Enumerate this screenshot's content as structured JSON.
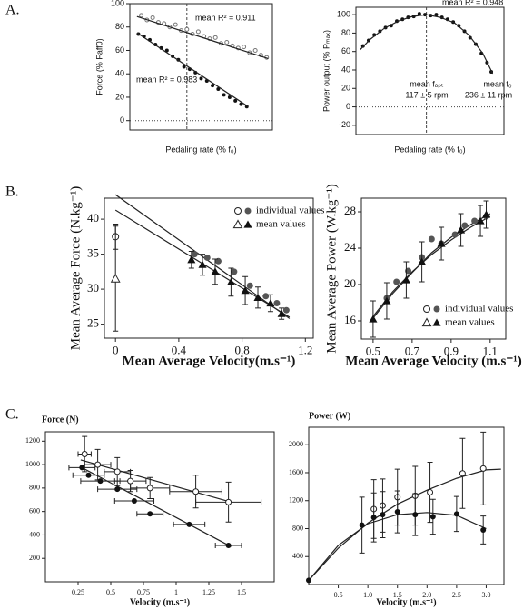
{
  "panel_labels": [
    "A.",
    "B.",
    "C."
  ],
  "chart_data": [
    {
      "type": "scatter",
      "ylabel": "Force (% Faff0)",
      "xlabel": "Pedaling rate (% f₀)",
      "xlim": [
        0,
        100
      ],
      "ylim": [
        -8,
        100
      ],
      "yticks": [
        0,
        20,
        40,
        60,
        80,
        100
      ],
      "vline": 40,
      "hline": 0,
      "series": [
        {
          "color": "#777777",
          "marker": "circle-open",
          "x": [
            8,
            12,
            16,
            20,
            24,
            28,
            32,
            36,
            40,
            44,
            48,
            52,
            56,
            60,
            64,
            68,
            72,
            76,
            80,
            84,
            88,
            92,
            96
          ],
          "values": [
            90,
            86,
            88,
            84,
            83,
            80,
            82,
            77,
            78,
            74,
            76,
            72,
            70,
            71,
            66,
            67,
            64,
            62,
            63,
            58,
            60,
            56,
            54
          ]
        },
        {
          "color": "#111111",
          "marker": "circle",
          "x": [
            6,
            10,
            14,
            18,
            22,
            26,
            30,
            34,
            38,
            42,
            46,
            50,
            54,
            58,
            62,
            66,
            70,
            74,
            78,
            82
          ],
          "values": [
            74,
            72,
            69,
            65,
            62,
            60,
            55,
            52,
            46,
            44,
            41,
            36,
            34,
            30,
            27,
            22,
            20,
            17,
            14,
            12
          ]
        },
        {
          "color": "#222222",
          "marker": "line",
          "x": [
            5,
            97
          ],
          "values": [
            89,
            53
          ]
        },
        {
          "color": "#222222",
          "marker": "line",
          "x": [
            5,
            83
          ],
          "values": [
            75,
            12
          ]
        }
      ],
      "annotations": [
        "mean R² = 0.911",
        "mean R² = 0.983"
      ]
    },
    {
      "type": "scatter",
      "ylabel": "Power output (% Pₘₐₓ)",
      "xlabel": "Pedaling rate (% f₀)",
      "xlim": [
        0,
        105
      ],
      "ylim": [
        -30,
        108
      ],
      "yticks": [
        -20,
        0,
        20,
        40,
        60,
        80,
        100
      ],
      "vline": 50,
      "hline": 0,
      "series": [
        {
          "color": "#111111",
          "marker": "circle",
          "x": [
            5,
            9,
            13,
            17,
            21,
            25,
            29,
            33,
            37,
            41,
            45,
            49,
            53,
            57,
            61,
            65,
            69,
            73,
            77,
            81,
            85,
            89,
            93,
            96
          ],
          "values": [
            66,
            72,
            78,
            82,
            86,
            88,
            93,
            95,
            97,
            98,
            101,
            100,
            99,
            100,
            97,
            95,
            92,
            88,
            82,
            75,
            68,
            58,
            48,
            38
          ]
        },
        {
          "color": "#222222",
          "marker": "line",
          "x": [
            3,
            10,
            20,
            30,
            40,
            50,
            60,
            70,
            80,
            90,
            97
          ],
          "values": [
            62,
            73,
            85,
            93,
            98,
            100,
            97,
            91,
            78,
            58,
            36
          ]
        }
      ],
      "annotations": [
        "mean R² = 0.948",
        "mean fₒₚₜ",
        "117 ± 5 rpm",
        "mean f₀",
        "236 ± 11 rpm"
      ]
    },
    {
      "type": "scatter",
      "ylabel": "Mean Average Force (N.kg⁻¹)",
      "xlabel": "Mean Average Velocity(m.s⁻¹)",
      "xlim": [
        -0.07,
        1.25
      ],
      "ylim": [
        23,
        43
      ],
      "xticks": [
        0,
        0.4,
        0.8,
        1.2
      ],
      "yticks": [
        25,
        30,
        35,
        40
      ],
      "series": [
        {
          "color": "#222222",
          "marker": "line",
          "x": [
            0,
            1.1
          ],
          "values": [
            43.5,
            25.8
          ]
        },
        {
          "color": "#222222",
          "marker": "line",
          "x": [
            0,
            1.1
          ],
          "values": [
            41.3,
            26
          ]
        },
        {
          "color": "#222222",
          "marker": "circle-open",
          "x": [
            0
          ],
          "values": [
            37.5
          ],
          "yerr": [
            1.8
          ]
        },
        {
          "color": "#222222",
          "marker": "triangle-open",
          "x": [
            0
          ],
          "values": [
            31.5
          ],
          "yerr": [
            7.5
          ]
        },
        {
          "name": "individual values",
          "color": "#555555",
          "marker": "circle",
          "x": [
            0.5,
            0.58,
            0.65,
            0.75,
            0.85,
            0.95,
            1.02,
            1.08
          ],
          "values": [
            35,
            34.5,
            34,
            32.5,
            30.5,
            29,
            28,
            27
          ]
        },
        {
          "name": "mean values",
          "color": "#111111",
          "marker": "triangle",
          "x": [
            0.48,
            0.55,
            0.63,
            0.73,
            0.82,
            0.9,
            0.98,
            1.05
          ],
          "values": [
            34.2,
            33.5,
            32.5,
            31,
            29.8,
            28.8,
            28,
            26.5
          ],
          "yerr": [
            1.2,
            1.5,
            1.8,
            2,
            2,
            1.5,
            1.2,
            0.8
          ]
        }
      ]
    },
    {
      "type": "scatter",
      "ylabel": "Mean Average Power (W.kg⁻¹)",
      "xlabel": "Mean Average Velocity (m.s⁻¹)",
      "xlim": [
        0.44,
        1.18
      ],
      "ylim": [
        14,
        29.5
      ],
      "xticks": [
        0.5,
        0.7,
        0.9,
        1.1
      ],
      "yticks": [
        16,
        20,
        24,
        28
      ],
      "series": [
        {
          "color": "#222222",
          "marker": "line",
          "x": [
            0.5,
            0.6,
            0.7,
            0.8,
            0.9,
            1.0,
            1.1
          ],
          "values": [
            16.5,
            19.2,
            21.4,
            23.3,
            24.9,
            26.3,
            27.5
          ]
        },
        {
          "color": "#222222",
          "marker": "line",
          "x": [
            0.5,
            0.6,
            0.7,
            0.8,
            0.9,
            1.0,
            1.1
          ],
          "values": [
            16.3,
            19.0,
            21.3,
            23.5,
            25.2,
            26.6,
            27.8
          ]
        },
        {
          "name": "individual values",
          "color": "#555555",
          "marker": "circle",
          "x": [
            0.57,
            0.62,
            0.68,
            0.75,
            0.8,
            0.85,
            0.92,
            0.97,
            1.02,
            1.08
          ],
          "values": [
            18.5,
            20.3,
            21.5,
            23,
            25,
            24.5,
            25.5,
            26.5,
            27,
            27.5
          ]
        },
        {
          "name": "mean values",
          "color": "#111111",
          "marker": "triangle",
          "x": [
            0.5,
            0.57,
            0.67,
            0.75,
            0.85,
            0.95,
            1.05,
            1.08
          ],
          "values": [
            16.2,
            18.2,
            20.5,
            22.5,
            24.5,
            26,
            27,
            27.7
          ],
          "yerr": [
            2,
            2,
            2,
            2.2,
            1.8,
            1.8,
            1.7,
            1.5
          ]
        }
      ]
    },
    {
      "type": "scatter",
      "ylabel": "Force (N)",
      "xlabel": "Velocity (m.s⁻¹)",
      "xlim": [
        0,
        1.75
      ],
      "ylim": [
        0,
        1280
      ],
      "xticks": [
        0.25,
        0.5,
        0.75,
        1,
        1.25,
        1.5
      ],
      "yticks": [
        200,
        400,
        600,
        800,
        1000,
        1200
      ],
      "series": [
        {
          "color": "#222222",
          "marker": "line",
          "x": [
            0.27,
            1.42
          ],
          "values": [
            1040,
            680
          ]
        },
        {
          "color": "#222222",
          "marker": "line",
          "x": [
            0.27,
            1.42
          ],
          "values": [
            980,
            300
          ]
        },
        {
          "color": "#222222",
          "marker": "circle-open",
          "x": [
            0.3,
            0.4,
            0.55,
            0.65,
            0.8,
            1.15,
            1.4
          ],
          "values": [
            1090,
            1000,
            940,
            860,
            800,
            770,
            680
          ],
          "yerr": [
            150,
            130,
            120,
            90,
            90,
            140,
            170
          ],
          "xerr": [
            0.05,
            0.1,
            0.1,
            0.12,
            0.15,
            0.2,
            0.25
          ]
        },
        {
          "color": "#111111",
          "marker": "circle",
          "x": [
            0.28,
            0.33,
            0.42,
            0.55,
            0.68,
            0.8,
            1.1,
            1.4
          ],
          "values": [
            975,
            910,
            860,
            790,
            690,
            580,
            490,
            310
          ],
          "xerr": [
            0.1,
            0.12,
            0.15,
            0.15,
            0.15,
            0.1,
            0.12,
            0.1
          ]
        }
      ]
    },
    {
      "type": "scatter",
      "ylabel": "Power (W)",
      "xlabel": "Velocity (m.s⁻¹)",
      "xlim": [
        0,
        3.3
      ],
      "ylim": [
        0,
        2250
      ],
      "xticks": [
        0.5,
        {
          "value": 1,
          "label": "1.0"
        },
        1.5,
        {
          "value": 2,
          "label": "2.0"
        },
        2.5,
        {
          "value": 3,
          "label": "3.0"
        }
      ],
      "yticks": [
        400,
        800,
        1200,
        1600,
        2000
      ],
      "series": [
        {
          "color": "#222222",
          "marker": "line",
          "x": [
            0,
            0.5,
            1,
            1.5,
            2,
            2.5,
            3,
            3.25
          ],
          "values": [
            60,
            520,
            880,
            1150,
            1350,
            1520,
            1640,
            1650
          ]
        },
        {
          "color": "#222222",
          "marker": "line",
          "x": [
            0,
            0.5,
            1,
            1.5,
            2,
            2.5,
            3
          ],
          "values": [
            60,
            560,
            870,
            1000,
            1030,
            990,
            800
          ]
        },
        {
          "color": "#222222",
          "marker": "circle-open",
          "x": [
            1.1,
            1.25,
            1.5,
            1.8,
            2.05,
            2.6,
            2.95
          ],
          "values": [
            1080,
            1130,
            1250,
            1270,
            1320,
            1590,
            1660
          ],
          "yerr": [
            420,
            380,
            400,
            420,
            430,
            500,
            520
          ]
        },
        {
          "color": "#111111",
          "marker": "circle",
          "x": [
            0,
            0.9,
            1.1,
            1.25,
            1.5,
            1.8,
            2.1,
            2.5,
            2.95
          ],
          "values": [
            60,
            850,
            960,
            1000,
            1040,
            1000,
            970,
            1010,
            780
          ],
          "yerr": [
            null,
            400,
            350,
            330,
            300,
            300,
            250,
            250,
            200
          ]
        }
      ]
    }
  ]
}
